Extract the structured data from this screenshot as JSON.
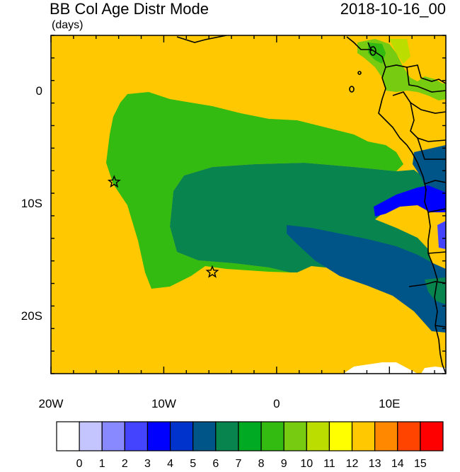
{
  "title": {
    "left": "BB Col Age Distr Mode",
    "right": "2018-10-16_00",
    "units": "(days)"
  },
  "map": {
    "lon_range": [
      -20,
      15
    ],
    "lat_range": [
      -25,
      5
    ],
    "x_ticks": [
      {
        "value": -20,
        "label": "20W"
      },
      {
        "value": -10,
        "label": "10W"
      },
      {
        "value": 0,
        "label": "0"
      },
      {
        "value": 10,
        "label": "10E"
      }
    ],
    "y_ticks": [
      {
        "value": 0,
        "label": "0"
      },
      {
        "value": -10,
        "label": "10S"
      },
      {
        "value": -20,
        "label": "20S"
      }
    ],
    "markers": [
      {
        "name": "star-marker-ascension",
        "lon": -14.4,
        "lat": -8.0
      },
      {
        "name": "star-marker-st-helena",
        "lon": -5.7,
        "lat": -16.0
      }
    ],
    "background_color": "#ffc800"
  },
  "colorbar": {
    "labels": [
      "0",
      "1",
      "2",
      "3",
      "4",
      "5",
      "6",
      "7",
      "8",
      "9",
      "10",
      "11",
      "12",
      "13",
      "14",
      "15"
    ],
    "colors": [
      "#ffffff",
      "#c4c4ff",
      "#8888ff",
      "#4444ff",
      "#0000ff",
      "#0033cc",
      "#005588",
      "#08844f",
      "#00aa22",
      "#33bb11",
      "#77cc11",
      "#bbdd00",
      "#ffff00",
      "#ffc800",
      "#ff8800",
      "#ff4400",
      "#ff0000"
    ]
  }
}
